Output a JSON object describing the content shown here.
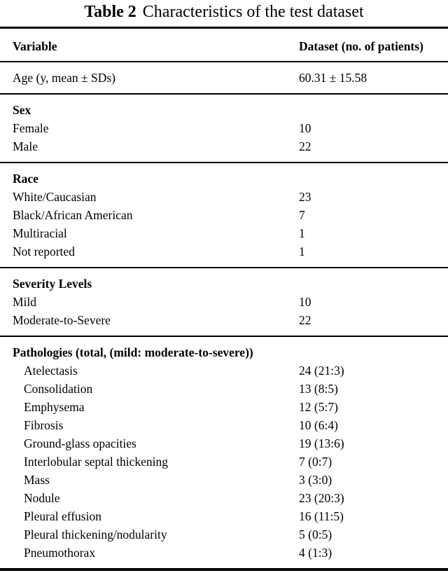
{
  "title": {
    "label": "Table 2",
    "text": "Characteristics of the test dataset"
  },
  "colors": {
    "text": "#000000",
    "background": "#ffffff",
    "rule": "#000000"
  },
  "table": {
    "header": {
      "variable": "Variable",
      "value": "Dataset (no. of patients)"
    },
    "sections": [
      {
        "heading": null,
        "indent_rows": false,
        "rows": [
          {
            "label": "Age (y, mean ± SDs)",
            "value": "60.31 ± 15.58"
          }
        ]
      },
      {
        "heading": "Sex",
        "indent_rows": false,
        "rows": [
          {
            "label": "Female",
            "value": "10"
          },
          {
            "label": "Male",
            "value": "22"
          }
        ]
      },
      {
        "heading": "Race",
        "indent_rows": false,
        "rows": [
          {
            "label": "White/Caucasian",
            "value": "23"
          },
          {
            "label": "Black/African American",
            "value": "7"
          },
          {
            "label": "Multiracial",
            "value": "1"
          },
          {
            "label": "Not reported",
            "value": "1"
          }
        ]
      },
      {
        "heading": "Severity Levels",
        "indent_rows": false,
        "rows": [
          {
            "label": "Mild",
            "value": "10"
          },
          {
            "label": "Moderate-to-Severe",
            "value": "22"
          }
        ]
      },
      {
        "heading": "Pathologies (total, (mild: moderate-to-severe))",
        "indent_rows": true,
        "rows": [
          {
            "label": "Atelectasis",
            "value": "24 (21:3)"
          },
          {
            "label": "Consolidation",
            "value": "13 (8:5)"
          },
          {
            "label": "Emphysema",
            "value": "12 (5:7)"
          },
          {
            "label": "Fibrosis",
            "value": "10 (6:4)"
          },
          {
            "label": "Ground-glass opacities",
            "value": "19 (13:6)"
          },
          {
            "label": "Interlobular septal thickening",
            "value": "7 (0:7)"
          },
          {
            "label": "Mass",
            "value": "3 (3:0)"
          },
          {
            "label": "Nodule",
            "value": "23 (20:3)"
          },
          {
            "label": "Pleural effusion",
            "value": "16 (11:5)"
          },
          {
            "label": "Pleural thickening/nodularity",
            "value": "5 (0:5)"
          },
          {
            "label": "Pneumothorax",
            "value": "4 (1:3)"
          }
        ]
      }
    ]
  }
}
